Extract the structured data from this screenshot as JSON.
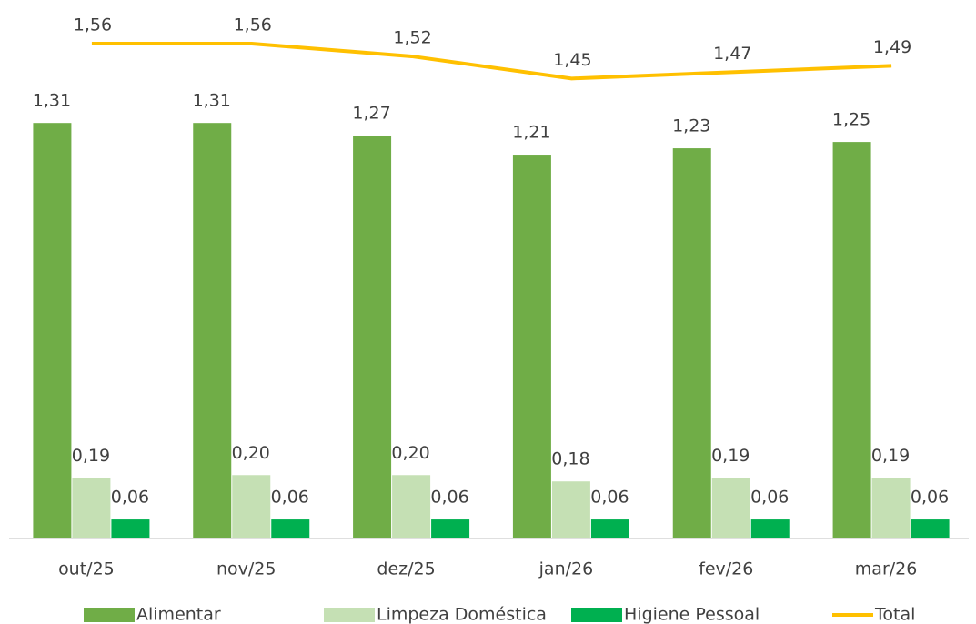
{
  "chart_data": {
    "type": "bar",
    "categories": [
      "out/25",
      "nov/25",
      "dez/25",
      "jan/26",
      "fev/26",
      "mar/26"
    ],
    "series": [
      {
        "name": "Alimentar",
        "color": "#70ad47",
        "values": [
          1.31,
          1.31,
          1.27,
          1.21,
          1.23,
          1.25
        ],
        "value_labels": [
          "1,31",
          "1,31",
          "1,27",
          "1,21",
          "1,23",
          "1,25"
        ]
      },
      {
        "name": "Limpeza Doméstica",
        "color": "#c5e0b4",
        "values": [
          0.19,
          0.2,
          0.2,
          0.18,
          0.19,
          0.19
        ],
        "value_labels": [
          "0,19",
          "0,20",
          "0,20",
          "0,18",
          "0,19",
          "0,19"
        ]
      },
      {
        "name": "Higiene Pessoal",
        "color": "#00b050",
        "values": [
          0.06,
          0.06,
          0.06,
          0.06,
          0.06,
          0.06
        ],
        "value_labels": [
          "0,06",
          "0,06",
          "0,06",
          "0,06",
          "0,06",
          "0,06"
        ]
      },
      {
        "name": "Total",
        "type": "line",
        "color": "#ffc000",
        "values": [
          1.56,
          1.56,
          1.52,
          1.45,
          1.47,
          1.49
        ],
        "value_labels": [
          "1,56",
          "1,56",
          "1,52",
          "1,45",
          "1,47",
          "1,49"
        ]
      }
    ],
    "legend": "bottom"
  }
}
